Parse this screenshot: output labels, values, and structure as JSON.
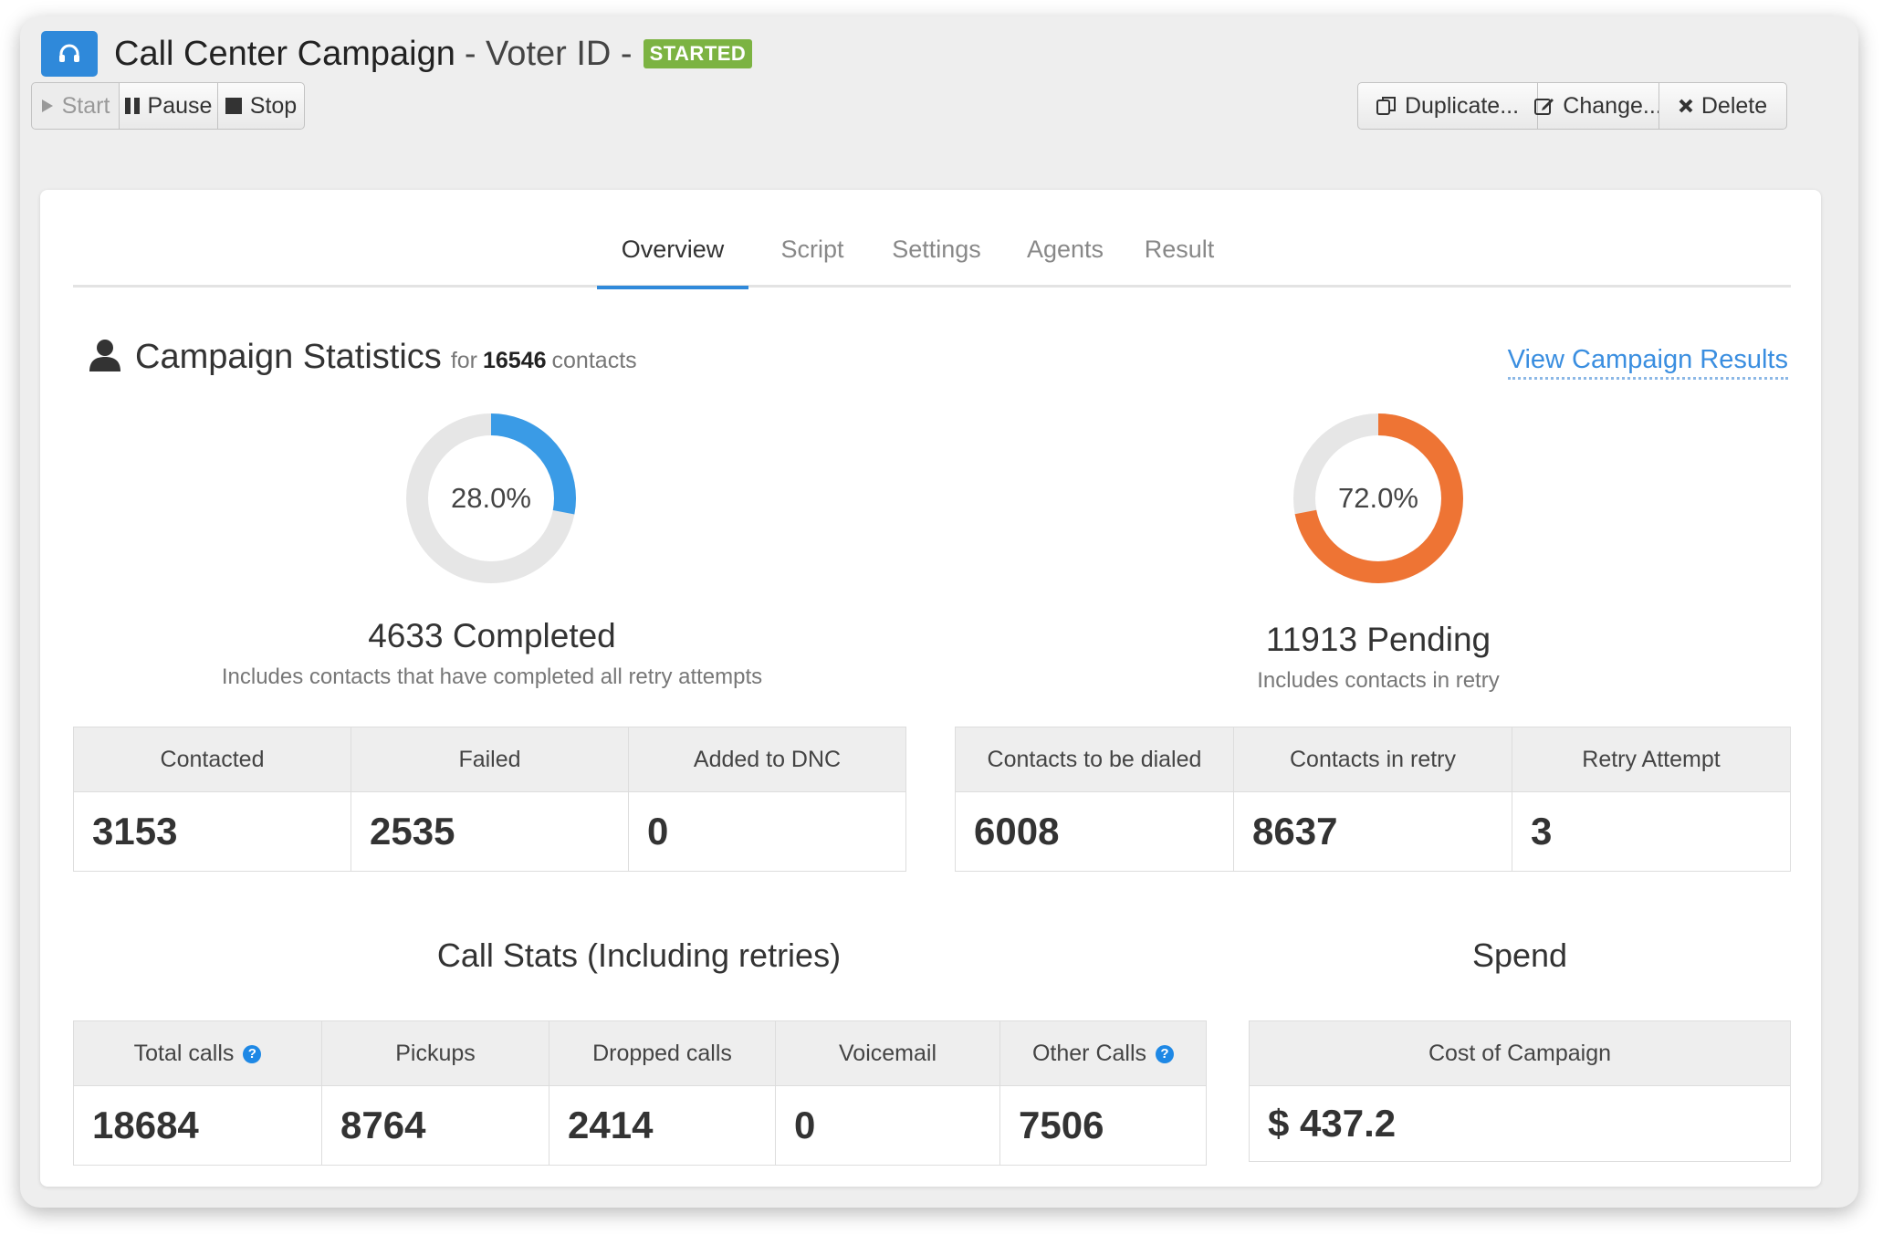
{
  "header": {
    "title": "Call Center Campaign",
    "subtitle": "- Voter ID -",
    "status_badge": "STARTED",
    "icon": "headset-icon"
  },
  "toolbar": {
    "start_label": "Start",
    "pause_label": "Pause",
    "stop_label": "Stop",
    "duplicate_label": "Duplicate...",
    "change_label": "Change...",
    "delete_label": "Delete"
  },
  "tabs": [
    {
      "label": "Overview",
      "active": true
    },
    {
      "label": "Script"
    },
    {
      "label": "Settings"
    },
    {
      "label": "Agents"
    },
    {
      "label": "Result"
    }
  ],
  "stats": {
    "title": "Campaign Statistics",
    "for_label": "for",
    "contact_count": "16546",
    "contacts_label": "contacts",
    "view_results_link": "View Campaign Results",
    "completed": {
      "percent": 28.0,
      "percent_label": "28.0%",
      "label": "4633 Completed",
      "note": "Includes contacts that have completed all retry attempts",
      "color": "#3a9be6"
    },
    "pending": {
      "percent": 72.0,
      "percent_label": "72.0%",
      "label": "11913 Pending",
      "note": "Includes contacts in retry",
      "color": "#ee7434"
    },
    "completed_table": {
      "headers": [
        "Contacted",
        "Failed",
        "Added to DNC"
      ],
      "values": [
        "3153",
        "2535",
        "0"
      ]
    },
    "pending_table": {
      "headers": [
        "Contacts to be dialed",
        "Contacts in retry",
        "Retry Attempt"
      ],
      "values": [
        "6008",
        "8637",
        "3"
      ]
    }
  },
  "call_stats": {
    "title": "Call Stats (Including retries)",
    "headers": [
      "Total calls",
      "Pickups",
      "Dropped calls",
      "Voicemail",
      "Other Calls"
    ],
    "values": [
      "18684",
      "8764",
      "2414",
      "0",
      "7506"
    ],
    "help_glyph": "?"
  },
  "spend": {
    "title": "Spend",
    "header": "Cost of Campaign",
    "value": "$ 437.2"
  }
}
